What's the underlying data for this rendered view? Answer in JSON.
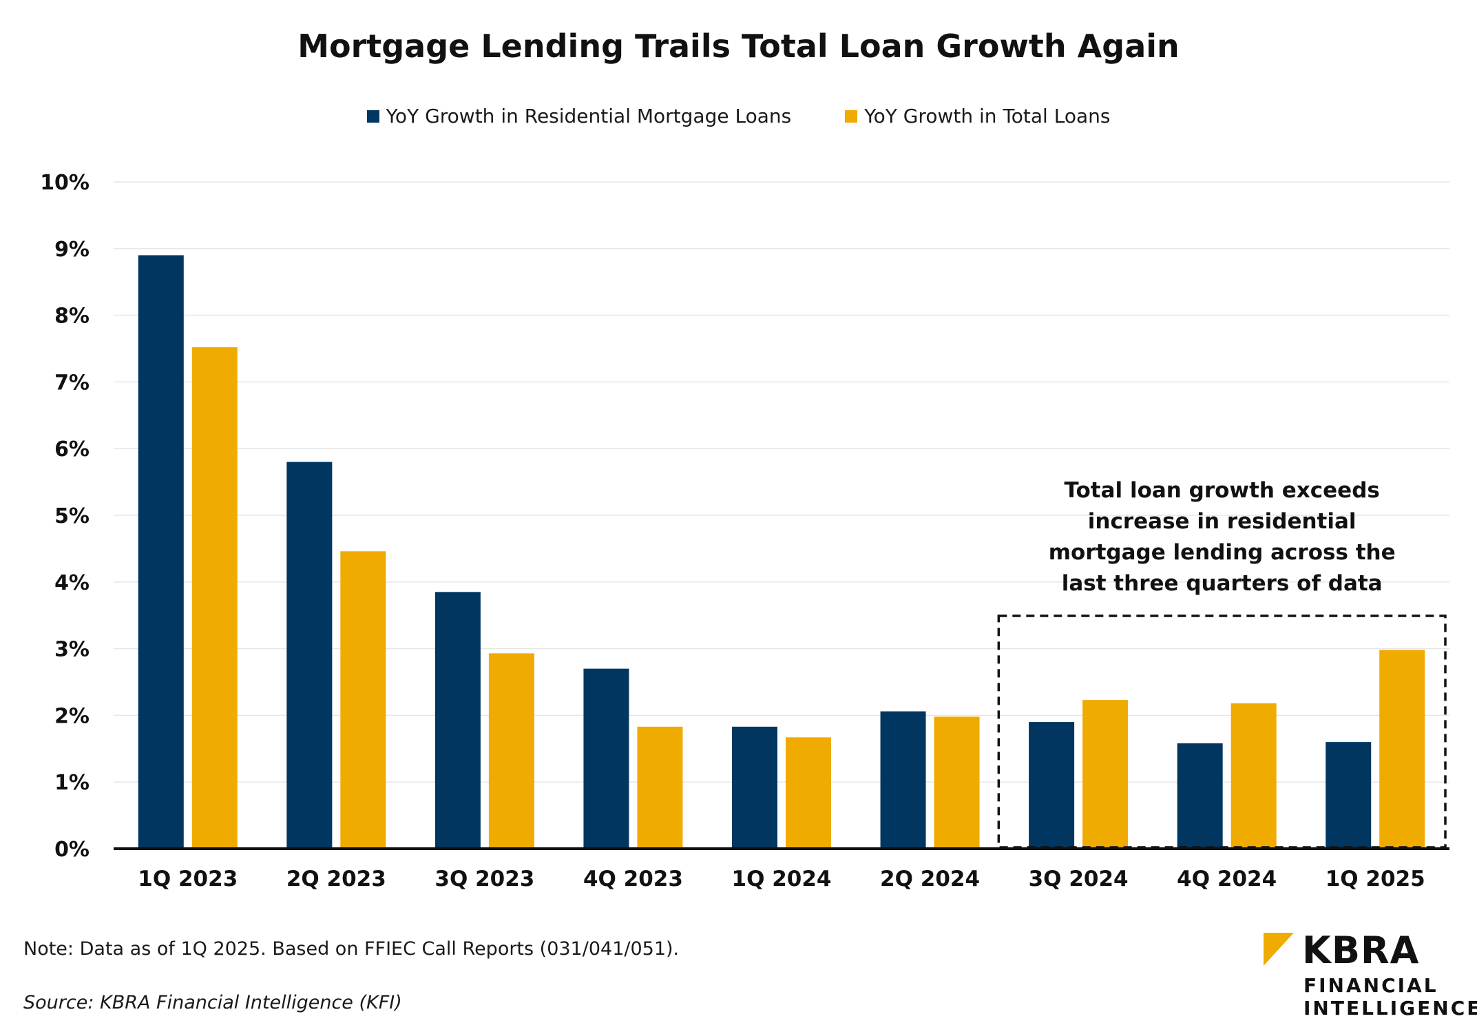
{
  "chart_data": {
    "type": "bar",
    "title": "Mortgage Lending Trails Total Loan Growth Again",
    "categories": [
      "1Q 2023",
      "2Q 2023",
      "3Q 2023",
      "4Q 2023",
      "1Q 2024",
      "2Q 2024",
      "3Q 2024",
      "4Q 2024",
      "1Q 2025"
    ],
    "series": [
      {
        "name": "YoY Growth in Residential Mortgage Loans",
        "color": "#003660",
        "values": [
          8.9,
          5.8,
          3.85,
          2.7,
          1.83,
          2.06,
          1.9,
          1.58,
          1.6
        ]
      },
      {
        "name": "YoY Growth in Total Loans",
        "color": "#F0AB00",
        "values": [
          7.52,
          4.46,
          2.93,
          1.83,
          1.67,
          1.98,
          2.23,
          2.18,
          2.98
        ]
      }
    ],
    "yticks": [
      "0%",
      "1%",
      "2%",
      "3%",
      "4%",
      "5%",
      "6%",
      "7%",
      "8%",
      "9%",
      "10%"
    ],
    "ylim": [
      0,
      10
    ],
    "xlabel": "",
    "ylabel": "",
    "grid": true,
    "legend": "top-center",
    "annotation": {
      "lines": [
        "Total loan growth exceeds",
        "increase in residential",
        "mortgage lending across the",
        "last three quarters of data"
      ],
      "highlight_categories": [
        "3Q 2024",
        "4Q 2024",
        "1Q 2025"
      ]
    }
  },
  "footer": {
    "note": "Note: Data as of 1Q 2025. Based on FFIEC Call Reports (031/041/051).",
    "source": "Source: KBRA Financial Intelligence (KFI)"
  },
  "logo": {
    "name": "KBRA",
    "sub_line1": "FINANCIAL",
    "sub_line2": "INTELLIGENCE",
    "accent_color": "#F0AB00"
  }
}
